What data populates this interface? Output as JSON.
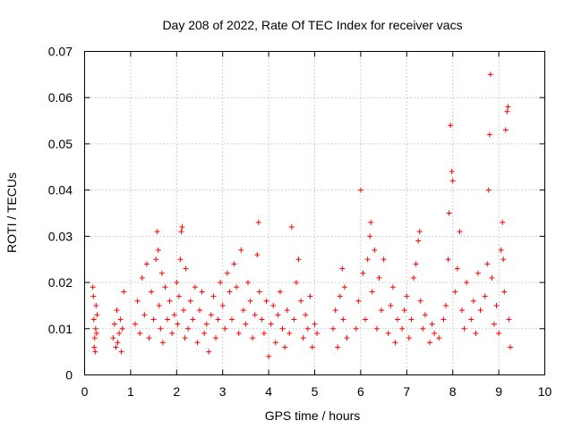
{
  "chart_data": {
    "type": "scatter",
    "title": "Day 208 of 2022, Rate Of TEC Index for receiver vacs",
    "xlabel": "GPS time / hours",
    "ylabel": "ROTI / TECUs",
    "xlim": [
      0,
      10
    ],
    "ylim": [
      0,
      0.07
    ],
    "x_ticks": [
      "0",
      "1",
      "2",
      "3",
      "4",
      "5",
      "6",
      "7",
      "8",
      "9",
      "10"
    ],
    "y_ticks": [
      "0",
      "0.01",
      "0.02",
      "0.03",
      "0.04",
      "0.05",
      "0.06",
      "0.07"
    ],
    "grid": true,
    "marker": "+",
    "color": "#ff0000",
    "clusters_note": "Dense scatter of ROTI samples per satellite pass; values mostly 0.004-0.03",
    "series": [
      {
        "name": "ROTI",
        "points": [
          [
            0.2,
            0.012
          ],
          [
            0.22,
            0.008
          ],
          [
            0.25,
            0.015
          ],
          [
            0.18,
            0.019
          ],
          [
            0.21,
            0.006
          ],
          [
            0.24,
            0.01
          ],
          [
            0.27,
            0.013
          ],
          [
            0.19,
            0.017
          ],
          [
            0.23,
            0.005
          ],
          [
            0.26,
            0.009
          ],
          [
            0.62,
            0.008
          ],
          [
            0.65,
            0.011
          ],
          [
            0.68,
            0.006
          ],
          [
            0.7,
            0.014
          ],
          [
            0.75,
            0.009
          ],
          [
            0.78,
            0.012
          ],
          [
            0.8,
            0.005
          ],
          [
            0.85,
            0.018
          ],
          [
            0.82,
            0.01
          ],
          [
            0.72,
            0.007
          ],
          [
            1.1,
            0.011
          ],
          [
            1.15,
            0.016
          ],
          [
            1.2,
            0.009
          ],
          [
            1.25,
            0.021
          ],
          [
            1.3,
            0.013
          ],
          [
            1.35,
            0.024
          ],
          [
            1.4,
            0.008
          ],
          [
            1.45,
            0.018
          ],
          [
            1.5,
            0.012
          ],
          [
            1.55,
            0.025
          ],
          [
            1.58,
            0.031
          ],
          [
            1.6,
            0.027
          ],
          [
            1.62,
            0.015
          ],
          [
            1.65,
            0.01
          ],
          [
            1.68,
            0.022
          ],
          [
            1.7,
            0.007
          ],
          [
            1.75,
            0.019
          ],
          [
            1.8,
            0.012
          ],
          [
            1.85,
            0.016
          ],
          [
            1.9,
            0.009
          ],
          [
            1.95,
            0.013
          ],
          [
            2.0,
            0.02
          ],
          [
            2.02,
            0.011
          ],
          [
            2.05,
            0.017
          ],
          [
            2.08,
            0.025
          ],
          [
            2.1,
            0.031
          ],
          [
            2.12,
            0.032
          ],
          [
            2.15,
            0.014
          ],
          [
            2.18,
            0.008
          ],
          [
            2.2,
            0.023
          ],
          [
            2.25,
            0.01
          ],
          [
            2.3,
            0.016
          ],
          [
            2.35,
            0.012
          ],
          [
            2.4,
            0.019
          ],
          [
            2.45,
            0.007
          ],
          [
            2.5,
            0.014
          ],
          [
            2.55,
            0.018
          ],
          [
            2.6,
            0.009
          ],
          [
            2.65,
            0.011
          ],
          [
            2.7,
            0.005
          ],
          [
            2.75,
            0.013
          ],
          [
            2.8,
            0.017
          ],
          [
            2.85,
            0.008
          ],
          [
            2.9,
            0.012
          ],
          [
            2.95,
            0.02
          ],
          [
            3.0,
            0.015
          ],
          [
            3.05,
            0.01
          ],
          [
            3.1,
            0.022
          ],
          [
            3.15,
            0.018
          ],
          [
            3.2,
            0.012
          ],
          [
            3.25,
            0.024
          ],
          [
            3.3,
            0.019
          ],
          [
            3.35,
            0.009
          ],
          [
            3.4,
            0.027
          ],
          [
            3.45,
            0.014
          ],
          [
            3.5,
            0.011
          ],
          [
            3.55,
            0.02
          ],
          [
            3.6,
            0.016
          ],
          [
            3.65,
            0.008
          ],
          [
            3.7,
            0.013
          ],
          [
            3.75,
            0.026
          ],
          [
            3.78,
            0.033
          ],
          [
            3.8,
            0.018
          ],
          [
            3.85,
            0.012
          ],
          [
            3.9,
            0.009
          ],
          [
            3.95,
            0.016
          ],
          [
            4.0,
            0.004
          ],
          [
            4.05,
            0.011
          ],
          [
            4.1,
            0.015
          ],
          [
            4.15,
            0.007
          ],
          [
            4.2,
            0.013
          ],
          [
            4.25,
            0.018
          ],
          [
            4.3,
            0.01
          ],
          [
            4.35,
            0.006
          ],
          [
            4.4,
            0.014
          ],
          [
            4.45,
            0.009
          ],
          [
            4.5,
            0.032
          ],
          [
            4.55,
            0.012
          ],
          [
            4.6,
            0.02
          ],
          [
            4.65,
            0.025
          ],
          [
            4.7,
            0.016
          ],
          [
            4.75,
            0.008
          ],
          [
            4.8,
            0.013
          ],
          [
            4.85,
            0.01
          ],
          [
            4.9,
            0.017
          ],
          [
            4.95,
            0.006
          ],
          [
            5.0,
            0.011
          ],
          [
            5.05,
            0.009
          ],
          [
            5.4,
            0.01
          ],
          [
            5.45,
            0.014
          ],
          [
            5.5,
            0.006
          ],
          [
            5.55,
            0.017
          ],
          [
            5.6,
            0.023
          ],
          [
            5.62,
            0.012
          ],
          [
            5.65,
            0.019
          ],
          [
            5.7,
            0.008
          ],
          [
            5.9,
            0.01
          ],
          [
            5.95,
            0.016
          ],
          [
            6.0,
            0.04
          ],
          [
            6.05,
            0.022
          ],
          [
            6.1,
            0.012
          ],
          [
            6.15,
            0.025
          ],
          [
            6.2,
            0.03
          ],
          [
            6.22,
            0.033
          ],
          [
            6.25,
            0.018
          ],
          [
            6.3,
            0.027
          ],
          [
            6.35,
            0.01
          ],
          [
            6.4,
            0.021
          ],
          [
            6.45,
            0.014
          ],
          [
            6.5,
            0.025
          ],
          [
            6.6,
            0.009
          ],
          [
            6.65,
            0.015
          ],
          [
            6.7,
            0.019
          ],
          [
            6.75,
            0.007
          ],
          [
            6.8,
            0.012
          ],
          [
            6.9,
            0.01
          ],
          [
            6.95,
            0.014
          ],
          [
            7.0,
            0.017
          ],
          [
            7.05,
            0.008
          ],
          [
            7.1,
            0.012
          ],
          [
            7.15,
            0.021
          ],
          [
            7.2,
            0.024
          ],
          [
            7.25,
            0.029
          ],
          [
            7.28,
            0.031
          ],
          [
            7.3,
            0.016
          ],
          [
            7.35,
            0.01
          ],
          [
            7.4,
            0.013
          ],
          [
            7.5,
            0.007
          ],
          [
            7.55,
            0.011
          ],
          [
            7.6,
            0.009
          ],
          [
            7.7,
            0.008
          ],
          [
            7.8,
            0.012
          ],
          [
            7.85,
            0.015
          ],
          [
            7.9,
            0.025
          ],
          [
            7.92,
            0.035
          ],
          [
            7.95,
            0.054
          ],
          [
            7.98,
            0.044
          ],
          [
            8.0,
            0.042
          ],
          [
            8.05,
            0.018
          ],
          [
            8.1,
            0.023
          ],
          [
            8.15,
            0.031
          ],
          [
            8.2,
            0.014
          ],
          [
            8.25,
            0.01
          ],
          [
            8.3,
            0.02
          ],
          [
            8.4,
            0.012
          ],
          [
            8.45,
            0.016
          ],
          [
            8.5,
            0.009
          ],
          [
            8.55,
            0.022
          ],
          [
            8.6,
            0.014
          ],
          [
            8.7,
            0.017
          ],
          [
            8.75,
            0.024
          ],
          [
            8.78,
            0.04
          ],
          [
            8.8,
            0.052
          ],
          [
            8.82,
            0.065
          ],
          [
            8.85,
            0.021
          ],
          [
            8.9,
            0.011
          ],
          [
            8.95,
            0.015
          ],
          [
            9.0,
            0.009
          ],
          [
            9.05,
            0.027
          ],
          [
            9.08,
            0.033
          ],
          [
            9.1,
            0.025
          ],
          [
            9.12,
            0.018
          ],
          [
            9.15,
            0.053
          ],
          [
            9.18,
            0.057
          ],
          [
            9.2,
            0.058
          ],
          [
            9.22,
            0.012
          ],
          [
            9.25,
            0.006
          ]
        ]
      }
    ]
  }
}
